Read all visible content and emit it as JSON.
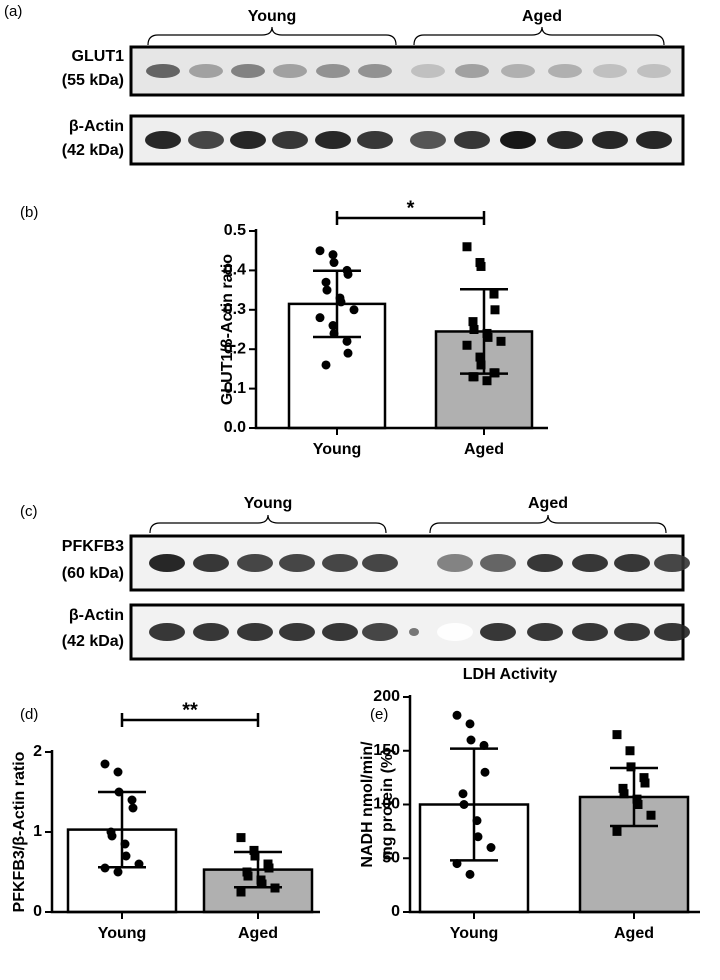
{
  "blots": [
    {
      "panel": "(a)",
      "groups": [
        "Young",
        "Aged"
      ],
      "rows": [
        {
          "name": "GLUT1",
          "size": "(55 kDa)"
        },
        {
          "name": "β-Actin",
          "size": "(42 kDa)"
        }
      ]
    },
    {
      "panel": "(c)",
      "groups": [
        "Young",
        "Aged"
      ],
      "rows": [
        {
          "name": "PFKFB3",
          "size": "(60 kDa)"
        },
        {
          "name": "β-Actin",
          "size": "(42 kDa)"
        }
      ]
    }
  ],
  "chart_data": [
    {
      "type": "bar",
      "panel": "(b)",
      "ylabel": [
        "GLUT1/β-Actin ratio"
      ],
      "categories": [
        "Young",
        "Aged"
      ],
      "values": [
        0.315,
        0.245
      ],
      "errors": [
        0.084,
        0.107
      ],
      "colors": [
        "#ffffff",
        "#b0b0b0"
      ],
      "markers": [
        "circle",
        "square"
      ],
      "points": [
        [
          0.45,
          0.44,
          0.42,
          0.4,
          0.39,
          0.37,
          0.35,
          0.33,
          0.32,
          0.3,
          0.28,
          0.26,
          0.24,
          0.22,
          0.19,
          0.16
        ],
        [
          0.46,
          0.42,
          0.41,
          0.34,
          0.3,
          0.27,
          0.25,
          0.24,
          0.23,
          0.22,
          0.21,
          0.18,
          0.16,
          0.14,
          0.14,
          0.13,
          0.13,
          0.12
        ]
      ],
      "significance": "*",
      "ylim": [
        0,
        0.5
      ],
      "yticks": [
        {
          "value": 0,
          "label": "0.0"
        },
        0.1,
        0.2,
        0.3,
        0.4,
        0.5
      ]
    },
    {
      "type": "bar",
      "panel": "(d)",
      "ylabel": [
        "PFKFB3/β-Actin ratio"
      ],
      "categories": [
        "Young",
        "Aged"
      ],
      "values": [
        1.03,
        0.53
      ],
      "errors": [
        0.47,
        0.22
      ],
      "colors": [
        "#ffffff",
        "#b0b0b0"
      ],
      "markers": [
        "circle",
        "square"
      ],
      "points": [
        [
          1.85,
          1.75,
          1.5,
          1.4,
          1.3,
          1.0,
          0.95,
          0.85,
          0.7,
          0.6,
          0.55,
          0.5
        ],
        [
          0.93,
          0.77,
          0.7,
          0.6,
          0.55,
          0.5,
          0.45,
          0.4,
          0.35,
          0.3,
          0.25
        ]
      ],
      "significance": "**",
      "ylim": [
        0,
        2
      ],
      "yticks": [
        0,
        1,
        2
      ]
    },
    {
      "type": "bar",
      "panel": "(e)",
      "title": "LDH Activity",
      "ylabel": [
        "NADH nmol/min/",
        "mg protein (%)"
      ],
      "categories": [
        "Young",
        "Aged"
      ],
      "values": [
        100,
        107
      ],
      "errors": [
        52,
        27
      ],
      "colors": [
        "#ffffff",
        "#b0b0b0"
      ],
      "markers": [
        "circle",
        "square"
      ],
      "points": [
        [
          183,
          175,
          160,
          155,
          130,
          110,
          100,
          85,
          70,
          60,
          45,
          35
        ],
        [
          165,
          150,
          135,
          125,
          120,
          115,
          110,
          105,
          100,
          90,
          75
        ]
      ],
      "ylim": [
        0,
        200
      ],
      "yticks": [
        0,
        50,
        100,
        150,
        200
      ]
    }
  ]
}
